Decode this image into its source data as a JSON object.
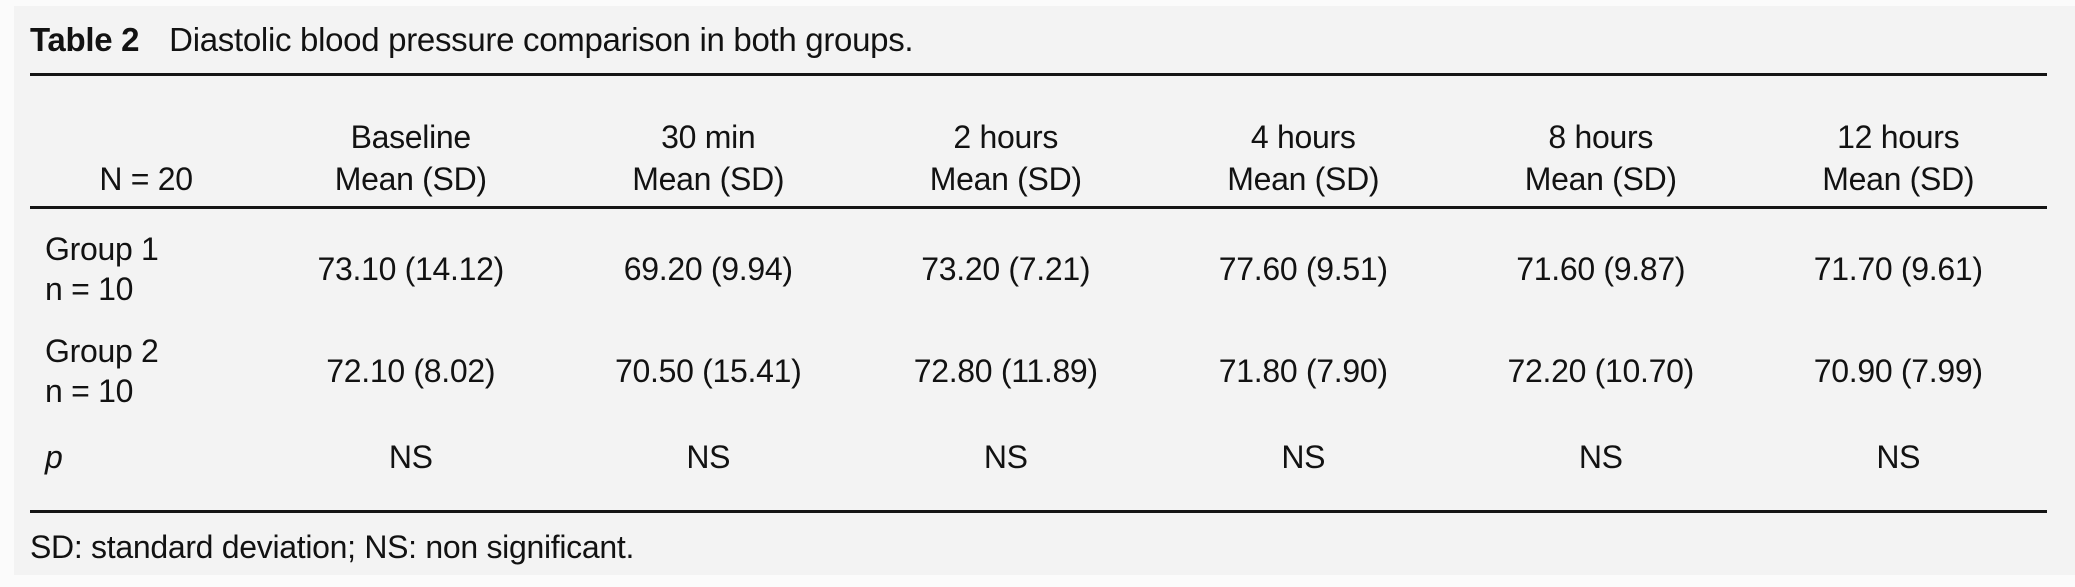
{
  "table": {
    "title_label": "Table 2",
    "title_caption": "Diastolic blood pressure comparison in both groups.",
    "header": {
      "n_label": "N = 20",
      "columns": [
        {
          "time": "Baseline",
          "sub": "Mean (SD)"
        },
        {
          "time": "30 min",
          "sub": "Mean (SD)"
        },
        {
          "time": "2 hours",
          "sub": "Mean (SD)"
        },
        {
          "time": "4 hours",
          "sub": "Mean (SD)"
        },
        {
          "time": "8 hours",
          "sub": "Mean (SD)"
        },
        {
          "time": "12 hours",
          "sub": "Mean (SD)"
        }
      ]
    },
    "rows": [
      {
        "label_line1": "Group 1",
        "label_line2": "n = 10",
        "values": [
          "73.10 (14.12)",
          "69.20 (9.94)",
          "73.20 (7.21)",
          "77.60 (9.51)",
          "71.60 (9.87)",
          "71.70 (9.61)"
        ]
      },
      {
        "label_line1": "Group 2",
        "label_line2": "n = 10",
        "values": [
          "72.10 (8.02)",
          "70.50 (15.41)",
          "72.80 (11.89)",
          "71.80 (7.90)",
          "72.20 (10.70)",
          "70.90 (7.99)"
        ]
      },
      {
        "label_line1": "p",
        "values": [
          "NS",
          "NS",
          "NS",
          "NS",
          "NS",
          "NS"
        ]
      }
    ],
    "footnote": "SD: standard deviation; NS: non significant."
  },
  "colors": {
    "page_background": "#f3f3f3",
    "rule_color": "#141414",
    "text_color": "#121212"
  },
  "chart_data": {
    "type": "table",
    "title": "Table 2 Diastolic blood pressure comparison in both groups.",
    "columns": [
      "N = 20",
      "Baseline Mean (SD)",
      "30 min Mean (SD)",
      "2 hours Mean (SD)",
      "4 hours Mean (SD)",
      "8 hours Mean (SD)",
      "12 hours Mean (SD)"
    ],
    "rows": [
      [
        "Group 1 n = 10",
        "73.10 (14.12)",
        "69.20 (9.94)",
        "73.20 (7.21)",
        "77.60 (9.51)",
        "71.60 (9.87)",
        "71.70 (9.61)"
      ],
      [
        "Group 2 n = 10",
        "72.10 (8.02)",
        "70.50 (15.41)",
        "72.80 (11.89)",
        "71.80 (7.90)",
        "72.20 (10.70)",
        "70.90 (7.99)"
      ],
      [
        "p",
        "NS",
        "NS",
        "NS",
        "NS",
        "NS",
        "NS"
      ]
    ],
    "footnote": "SD: standard deviation; NS: non significant."
  }
}
